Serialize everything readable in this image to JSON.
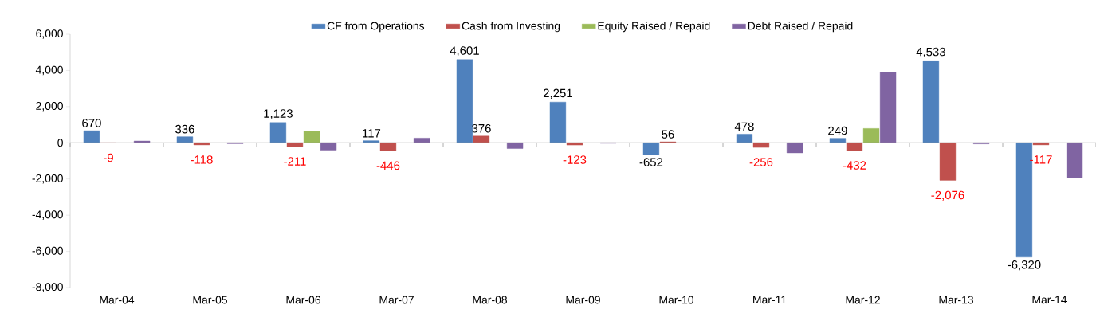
{
  "chart_data": {
    "type": "bar",
    "categories": [
      "Mar-04",
      "Mar-05",
      "Mar-06",
      "Mar-07",
      "Mar-08",
      "Mar-09",
      "Mar-10",
      "Mar-11",
      "Mar-12",
      "Mar-13",
      "Mar-14"
    ],
    "ylim": [
      -8000,
      6000
    ],
    "yticks": [
      {
        "value": -8000,
        "label": "-8,000"
      },
      {
        "value": -6000,
        "label": "-6,000"
      },
      {
        "value": -4000,
        "label": "-4,000"
      },
      {
        "value": -2000,
        "label": "-2,000"
      },
      0,
      {
        "value": 2000,
        "label": "2,000"
      },
      {
        "value": 4000,
        "label": "4,000"
      },
      {
        "value": 6000,
        "label": "6,000"
      }
    ],
    "legend": "top",
    "series": [
      {
        "name": "CF from Operations",
        "color": "#4f81bd",
        "values": [
          670,
          336,
          1123,
          117,
          4601,
          2251,
          -652,
          478,
          249,
          4533,
          -6320
        ],
        "value_labels": [
          "670",
          "336",
          "1,123",
          "117",
          "4,601",
          "2,251",
          "-652",
          "478",
          "249",
          "4,533",
          "-6,320"
        ]
      },
      {
        "name": "Cash from Investing",
        "color": "#c0504d",
        "values": [
          -9,
          -118,
          -211,
          -446,
          376,
          -123,
          56,
          -256,
          -432,
          -2076,
          -117
        ],
        "value_labels": [
          "-9",
          "-118",
          "-211",
          "-446",
          "376",
          "-123",
          "56",
          "-256",
          "-432",
          "-2,076",
          "-117"
        ]
      },
      {
        "name": "Equity Raised / Repaid",
        "color": "#9bbb59",
        "values": [
          null,
          null,
          650,
          null,
          null,
          null,
          null,
          null,
          790,
          null,
          null
        ]
      },
      {
        "name": "Debt Raised / Repaid",
        "color": "#8064a2",
        "values": [
          100,
          -50,
          -410,
          260,
          -320,
          -30,
          null,
          -560,
          3890,
          -60,
          -1920
        ]
      }
    ]
  }
}
